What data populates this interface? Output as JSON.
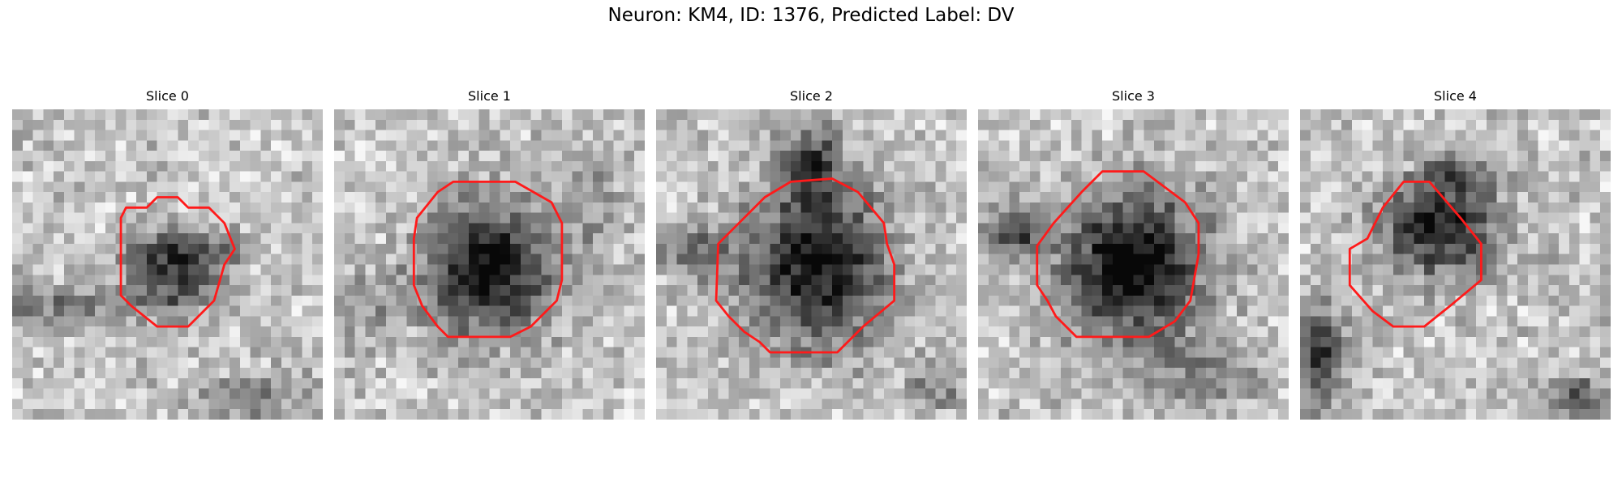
{
  "figure": {
    "suptitle": "Neuron: KM4, ID: 1376, Predicted Label: DV"
  },
  "colors": {
    "contour": "#ff1a1a",
    "background": "#ffffff",
    "colormap": "grayscale"
  },
  "panels": [
    {
      "title": "Slice 0"
    },
    {
      "title": "Slice 1"
    },
    {
      "title": "Slice 2"
    },
    {
      "title": "Slice 3"
    },
    {
      "title": "Slice 4"
    }
  ]
}
